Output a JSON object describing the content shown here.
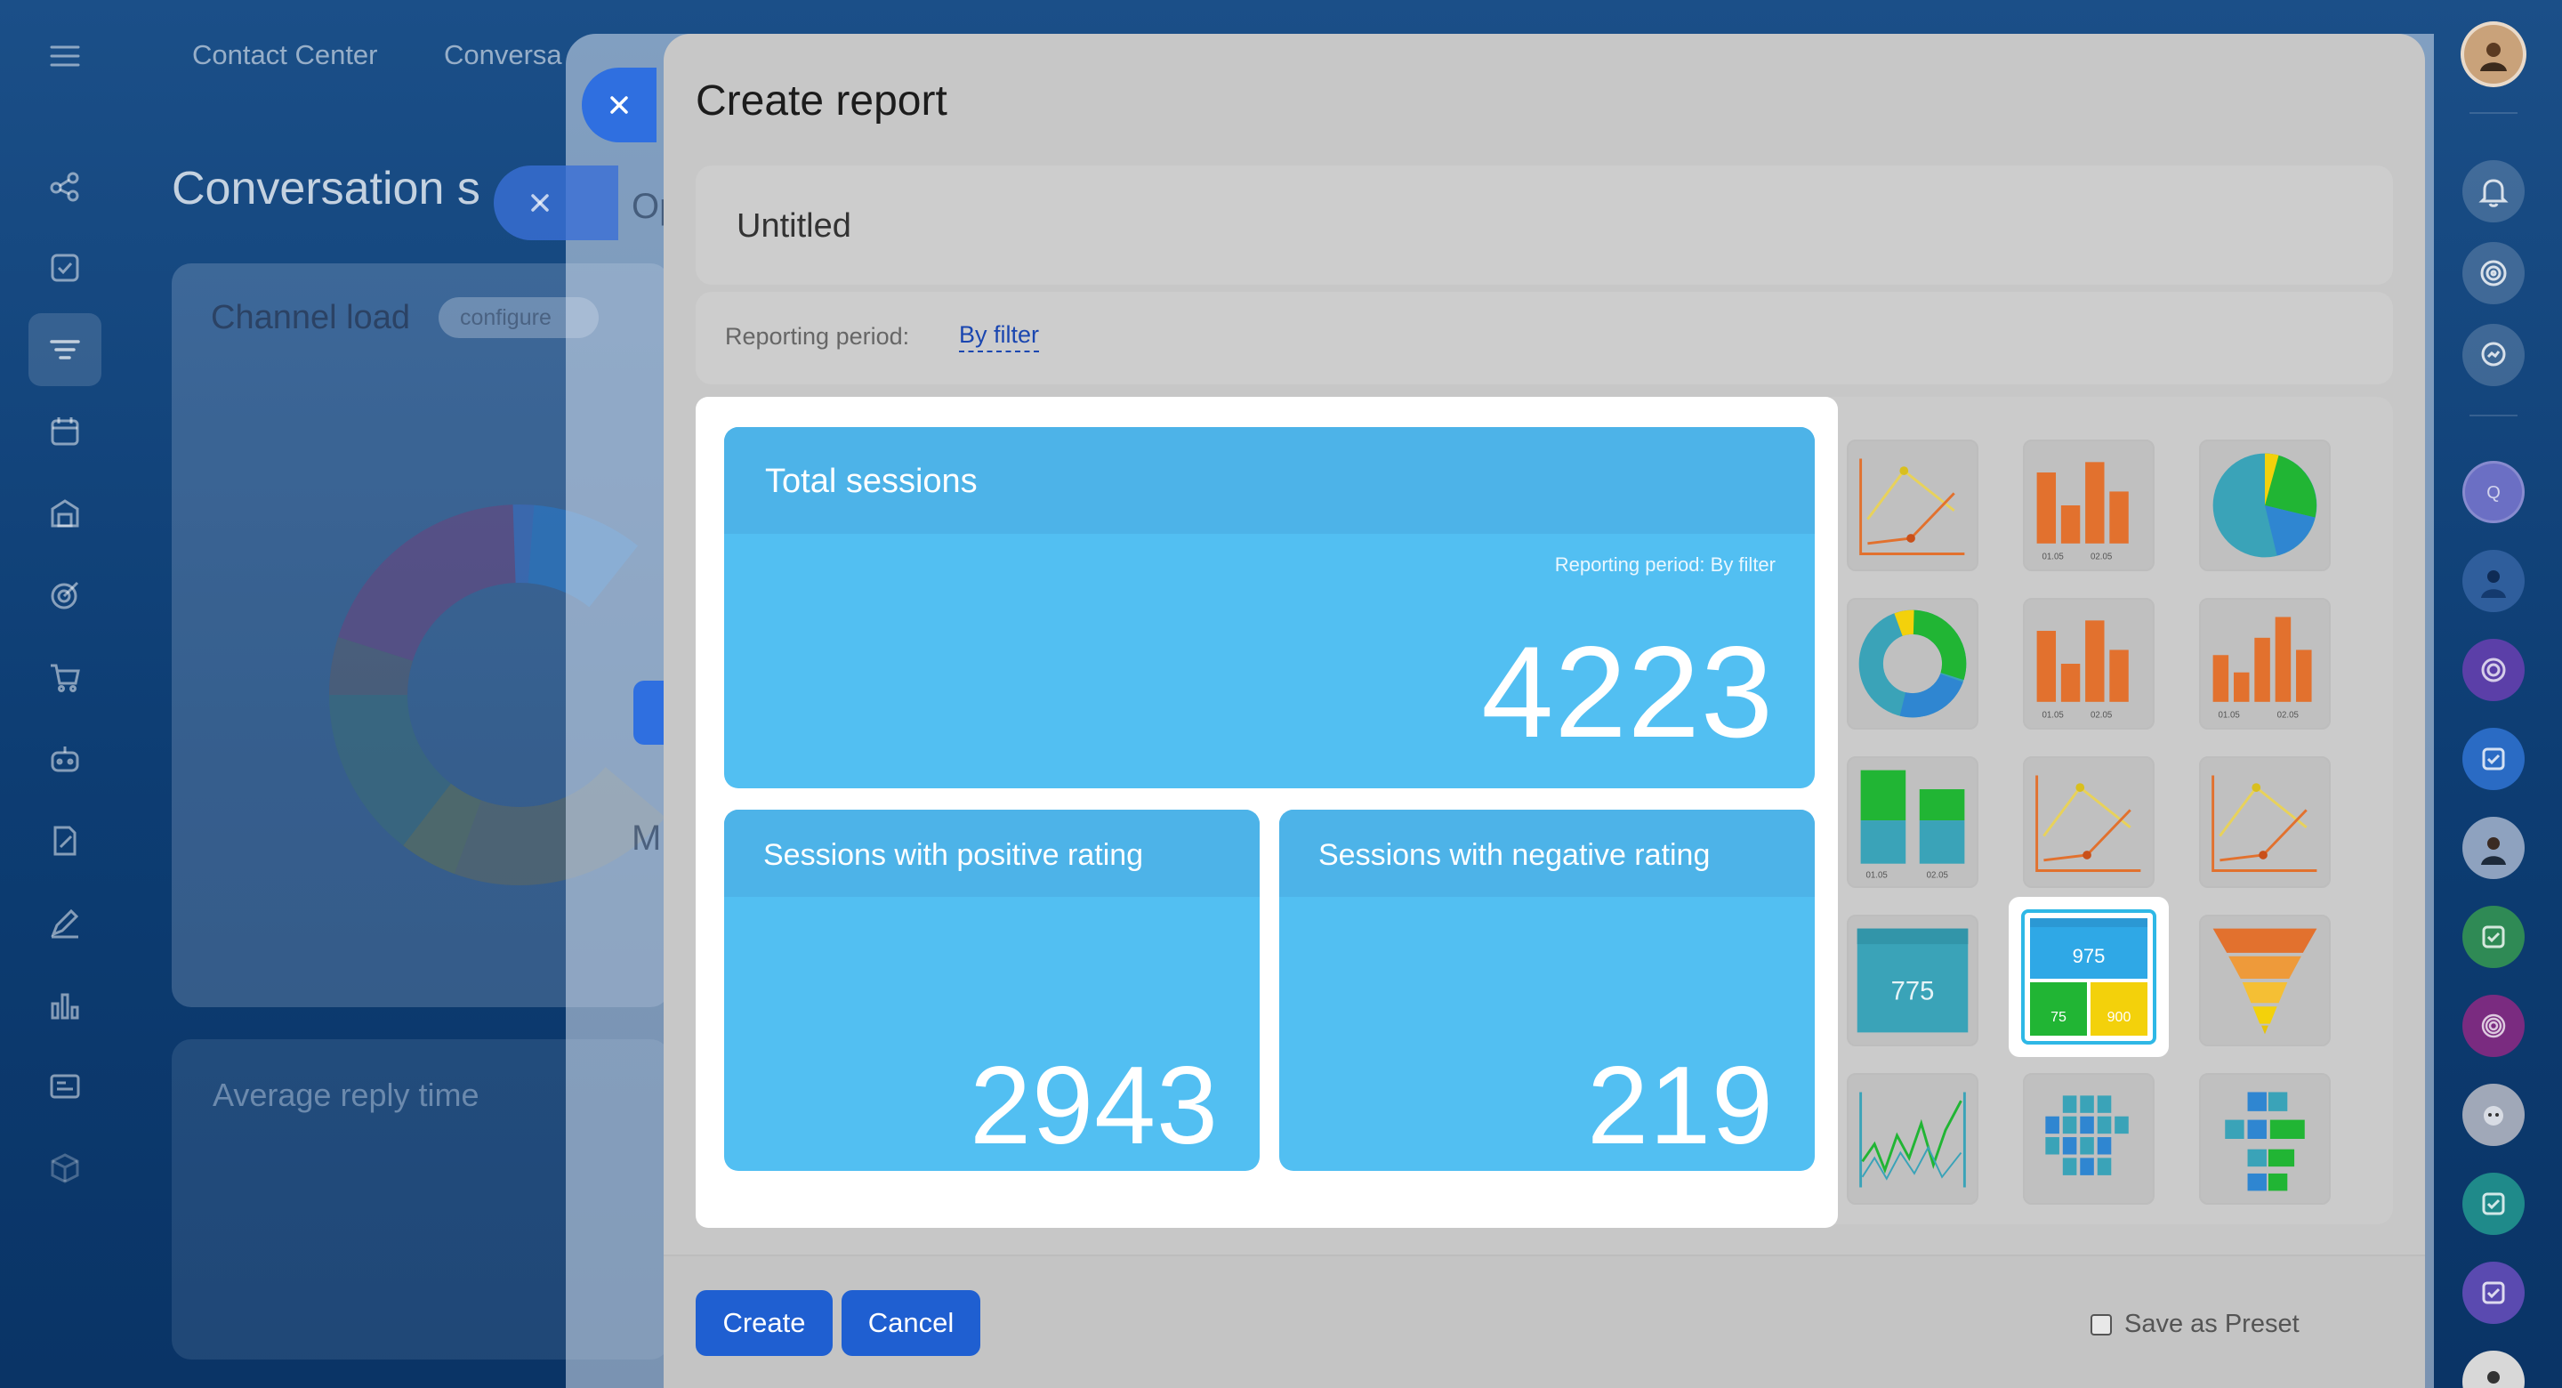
{
  "top_nav": {
    "items": [
      "Contact Center",
      "Conversa"
    ]
  },
  "background": {
    "page_title": "Conversation s",
    "channel_card": {
      "title": "Channel load",
      "config_label": "configure"
    },
    "reply_card_title": "Average reply time",
    "partial_labels": [
      "Op",
      "M"
    ]
  },
  "modal": {
    "title": "Create report",
    "report_title_value": "Untitled",
    "period_label": "Reporting period:",
    "period_value": "By filter",
    "preview": {
      "total": {
        "title": "Total sessions",
        "period": "Reporting period: By filter",
        "value": "4223"
      },
      "positive": {
        "title": "Sessions with positive rating",
        "value": "2943"
      },
      "negative": {
        "title": "Sessions with negative rating",
        "value": "219"
      }
    },
    "gallery": {
      "thumb_texts": {
        "bar_ticks": [
          "01.05",
          "02.05"
        ],
        "number_tile": "775",
        "selected_main": "975",
        "selected_left": "75",
        "selected_right": "900"
      }
    },
    "footer": {
      "create_label": "Create",
      "cancel_label": "Cancel",
      "preset_label": "Save as Preset"
    }
  },
  "colors": {
    "primary_button": "#1f5fd1",
    "tile_blue": "#52bff2",
    "tile_header": "#4db3e8",
    "chart_orange": "#e2712e",
    "chart_green": "#21b534",
    "chart_teal": "#3aa3b8",
    "chart_yellow": "#f3d10b"
  }
}
